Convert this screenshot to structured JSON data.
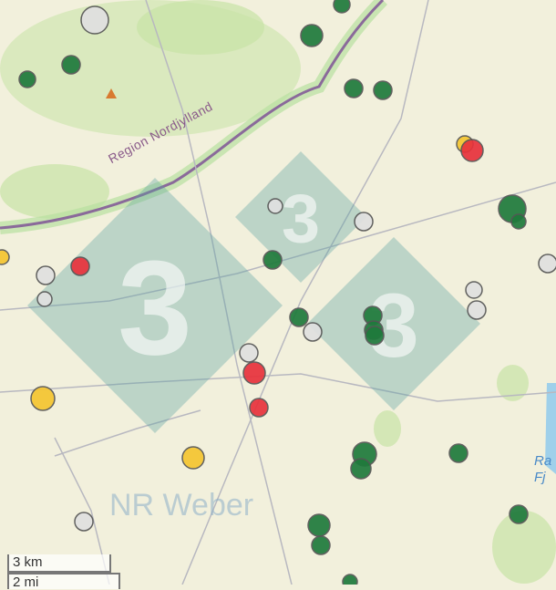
{
  "map": {
    "region_label": "Region Nordjylland",
    "water_labels": [
      "Ra",
      "Fj"
    ],
    "watermark_text": "NR Weber",
    "watermark_logo_digit": "3",
    "scale_bar": {
      "metric": "3 km",
      "imperial": "2 mi"
    },
    "marker_colors": {
      "grey": "#e0e0e0",
      "green": "#1f7a3c",
      "red": "#e8323c",
      "yellow": "#f5c530"
    },
    "colors": {
      "land": "#f2f0dc",
      "forest": "#c7e3a5",
      "border": "#8a6a9a",
      "watermark": "#5aa0a0"
    }
  }
}
